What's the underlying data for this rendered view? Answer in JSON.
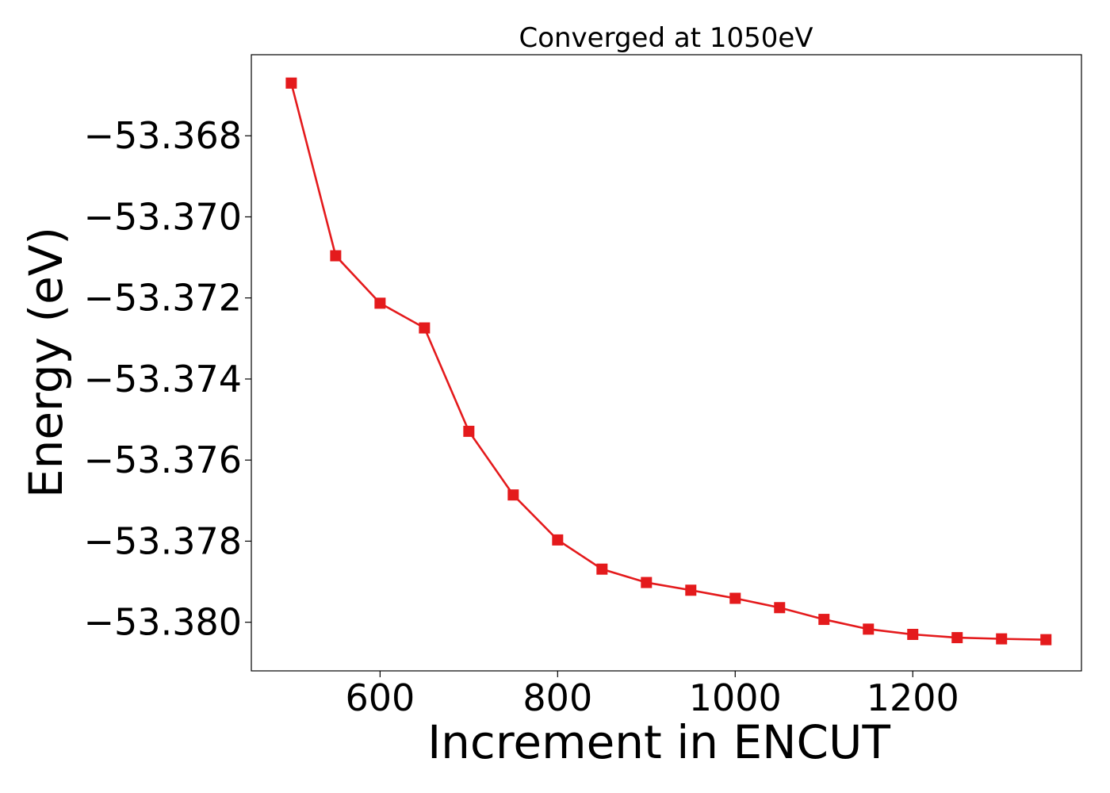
{
  "chart_data": {
    "type": "line",
    "title": "Converged at 1050eV",
    "xlabel": "Increment in ENCUT",
    "ylabel": "Energy (eV)",
    "xlim": [
      455,
      1390
    ],
    "ylim": [
      -53.3812,
      -53.366
    ],
    "xticks": [
      600,
      800,
      1000,
      1200
    ],
    "xtick_labels": [
      "600",
      "800",
      "1000",
      "1200"
    ],
    "yticks": [
      -53.368,
      -53.37,
      -53.372,
      -53.374,
      -53.376,
      -53.378,
      -53.38
    ],
    "ytick_labels": [
      "−53.368",
      "−53.370",
      "−53.372",
      "−53.374",
      "−53.376",
      "−53.378",
      "−53.380"
    ],
    "grid": false,
    "marker": "square",
    "color": "#e41a1c",
    "series": [
      {
        "x": [
          500,
          550,
          600,
          650,
          700,
          750,
          800,
          850,
          900,
          950,
          1000,
          1050,
          1100,
          1150,
          1200,
          1250,
          1300,
          1350
        ],
        "y": [
          -53.3667,
          -53.37096,
          -53.37213,
          -53.37274,
          -53.37529,
          -53.37686,
          -53.37797,
          -53.37869,
          -53.37902,
          -53.37921,
          -53.37941,
          -53.37964,
          -53.37993,
          -53.38017,
          -53.3803,
          -53.38038,
          -53.38041,
          -53.38043
        ]
      }
    ]
  }
}
